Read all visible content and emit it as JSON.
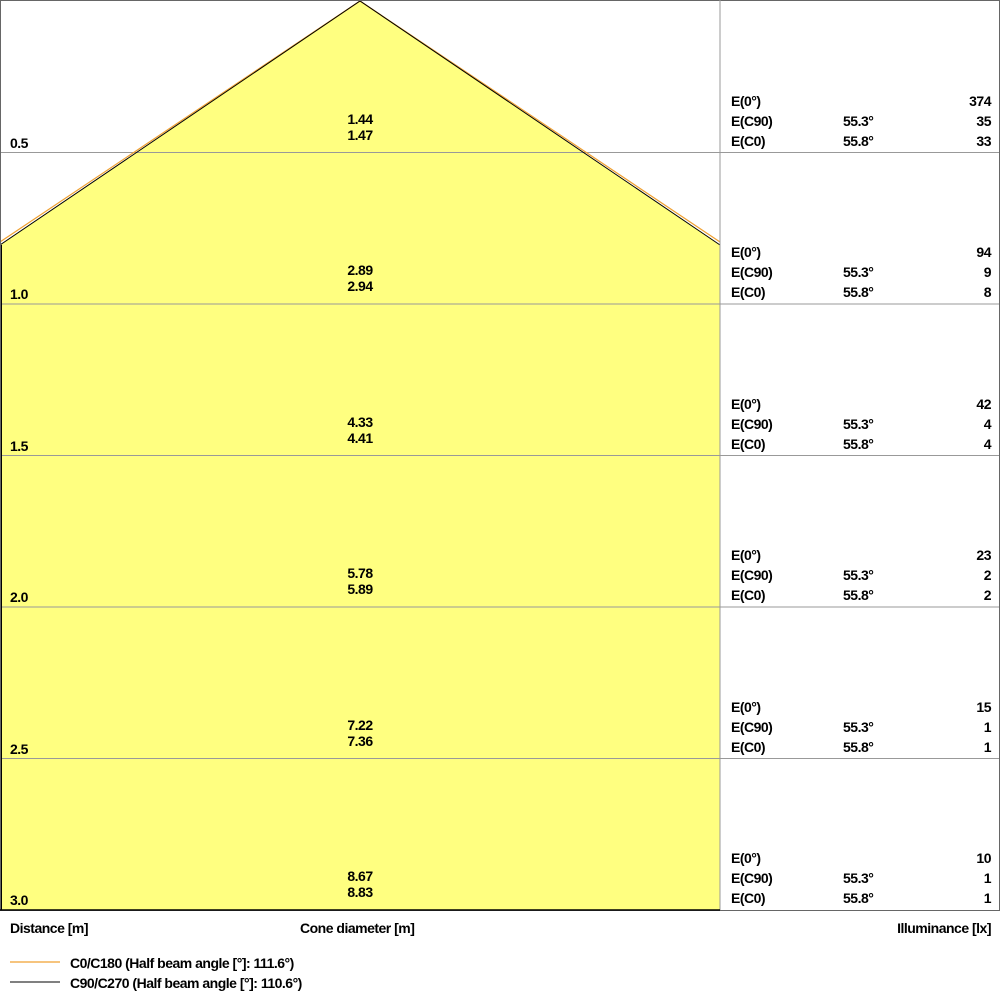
{
  "chart_data": {
    "type": "cone-diagram",
    "xlabel_left": "Distance [m]",
    "xlabel_center": "Cone diameter [m]",
    "xlabel_right": "Illuminance [lx]",
    "fill_color": "#ffff80",
    "rows": [
      {
        "distance": "0.5",
        "diam_c90": "1.44",
        "diam_c0": "1.47",
        "e0": "374",
        "ec90": "35",
        "ec0": "33"
      },
      {
        "distance": "1.0",
        "diam_c90": "2.89",
        "diam_c0": "2.94",
        "e0": "94",
        "ec90": "9",
        "ec0": "8"
      },
      {
        "distance": "1.5",
        "diam_c90": "4.33",
        "diam_c0": "4.41",
        "e0": "42",
        "ec90": "4",
        "ec0": "4"
      },
      {
        "distance": "2.0",
        "diam_c90": "5.78",
        "diam_c0": "5.89",
        "e0": "23",
        "ec90": "2",
        "ec0": "2"
      },
      {
        "distance": "2.5",
        "diam_c90": "7.22",
        "diam_c0": "7.36",
        "e0": "15",
        "ec90": "1",
        "ec0": "1"
      },
      {
        "distance": "3.0",
        "diam_c90": "8.67",
        "diam_c0": "8.83",
        "e0": "10",
        "ec90": "1",
        "ec0": "1"
      }
    ],
    "row_labels": {
      "e0": "E(0°)",
      "ec90": "E(C90)",
      "ec0": "E(C0)"
    },
    "angle_c90": "55.3°",
    "angle_c0": "55.8°",
    "series": [
      {
        "name": "C0/C180 (Half beam angle [°]: 111.6°)",
        "color": "#f0a030"
      },
      {
        "name": "C90/C270 (Half beam angle [°]: 110.6°)",
        "color": "#000000"
      }
    ]
  }
}
